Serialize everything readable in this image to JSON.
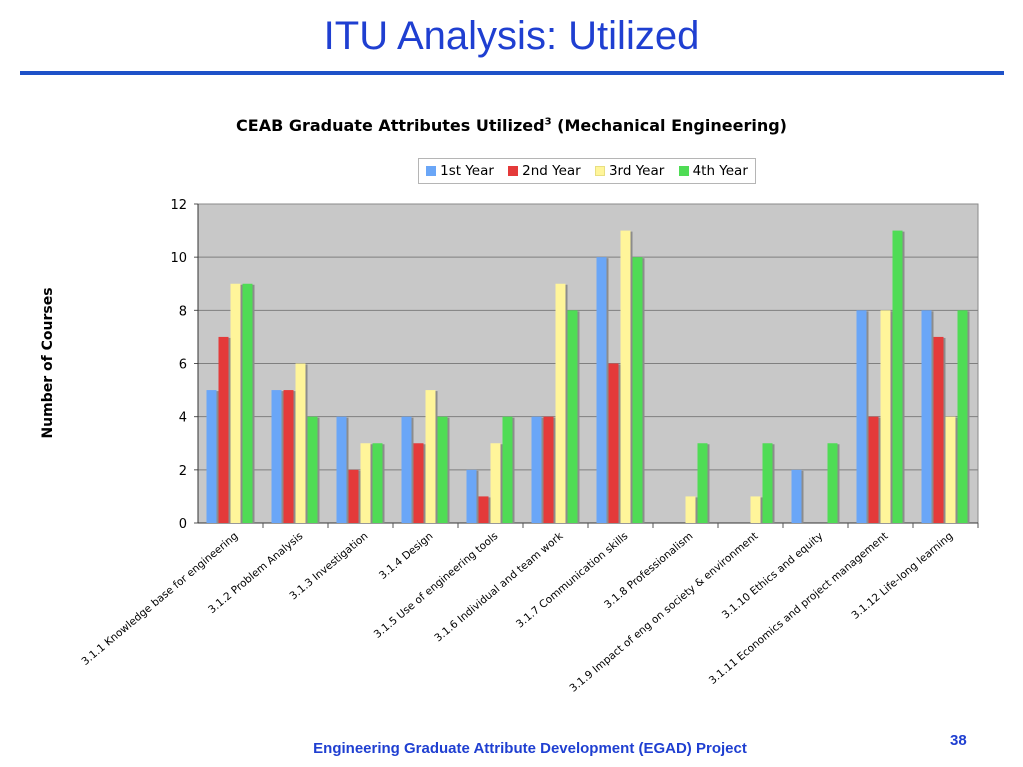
{
  "slide": {
    "title": "ITU Analysis: Utilized",
    "footer": "Engineering Graduate Attribute Development (EGAD) Project",
    "page_number": "38"
  },
  "chart_data": {
    "type": "bar",
    "title": "CEAB Graduate Attributes Utilized",
    "title_superscript": "3",
    "title_suffix": "(Mechanical Engineering)",
    "xlabel": "",
    "ylabel": "Number of Courses",
    "ylim": [
      0,
      12
    ],
    "yticks": [
      0,
      2,
      4,
      6,
      8,
      10,
      12
    ],
    "grid": true,
    "legend_position": "top-right",
    "categories": [
      "3.1.1 Knowledge base for engineering",
      "3.1.2 Problem Analysis",
      "3.1.3 Investigation",
      "3.1.4 Design",
      "3.1.5 Use of engineering tools",
      "3.1.6 Individual and team work",
      "3.1.7 Communication skills",
      "3.1.8 Professionalism",
      "3.1.9 Impact of eng on society & environment",
      "3.1.10 Ethics and equity",
      "3.1.11 Economics and project management",
      "3.1.12 Life-long learning"
    ],
    "series": [
      {
        "name": "1st Year",
        "color": "#6aa6f7",
        "values": [
          5,
          5,
          4,
          4,
          2,
          4,
          10,
          0,
          0,
          2,
          8,
          8
        ]
      },
      {
        "name": "2nd Year",
        "color": "#e43a3a",
        "values": [
          7,
          5,
          2,
          3,
          1,
          4,
          6,
          0,
          0,
          0,
          4,
          7
        ]
      },
      {
        "name": "3rd Year",
        "color": "#fff59a",
        "values": [
          9,
          6,
          3,
          5,
          3,
          9,
          11,
          1,
          1,
          0,
          8,
          4
        ]
      },
      {
        "name": "4th Year",
        "color": "#4fdc55",
        "values": [
          9,
          4,
          3,
          4,
          4,
          8,
          10,
          3,
          3,
          3,
          11,
          8
        ]
      }
    ]
  }
}
